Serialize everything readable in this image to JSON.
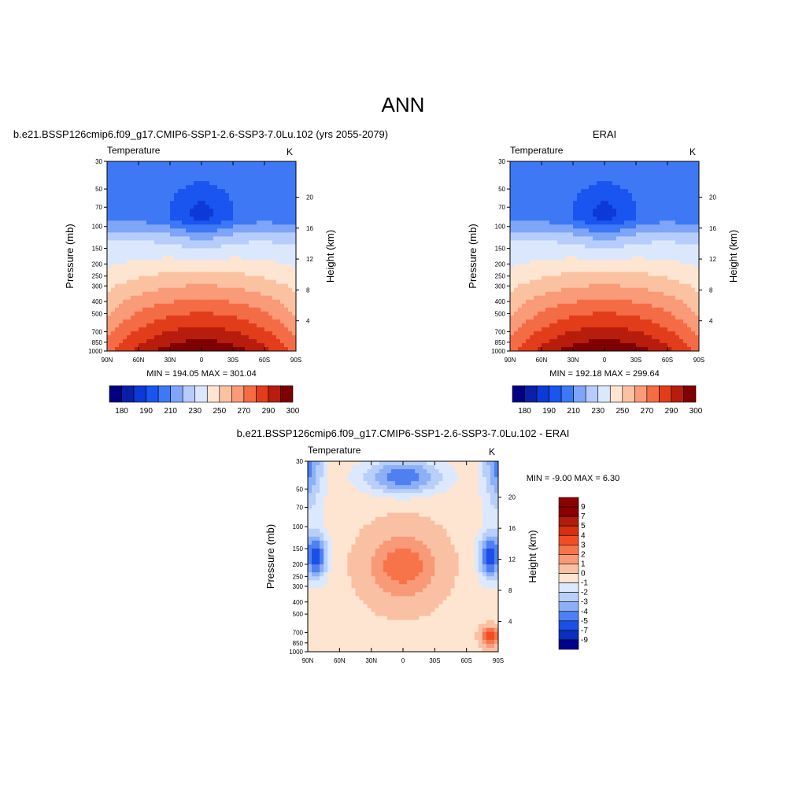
{
  "title": "ANN",
  "chart_data": [
    {
      "type": "heatmap",
      "title": "b.e21.BSSP126cmip6.f09_g17.CMIP6-SSP1-2.6-SSP3-7.0Lu.102 (yrs 2055-2079)",
      "left_string": "Temperature",
      "right_string": "K",
      "xlabel": "",
      "ylabel": "Pressure (mb)",
      "ylabel_right": "Height (km)",
      "x_ticks": [
        "90N",
        "60N",
        "30N",
        "0",
        "30S",
        "60S",
        "90S"
      ],
      "y_ticks": [
        "30",
        "50",
        "70",
        "100",
        "150",
        "200",
        "250",
        "300",
        "400",
        "500",
        "700",
        "850",
        "1000"
      ],
      "y_ticks_right": [
        "4",
        "8",
        "12",
        "16",
        "20"
      ],
      "stats": "MIN = 194.05  MAX = 301.04",
      "colorbar_labels": [
        "180",
        "190",
        "210",
        "230",
        "250",
        "270",
        "290",
        "300"
      ],
      "y_scale": "log"
    },
    {
      "type": "heatmap",
      "title": "ERAI",
      "left_string": "Temperature",
      "right_string": "K",
      "xlabel": "",
      "ylabel": "Pressure (mb)",
      "ylabel_right": "Height (km)",
      "x_ticks": [
        "90N",
        "60N",
        "30N",
        "0",
        "30S",
        "60S",
        "90S"
      ],
      "y_ticks": [
        "30",
        "50",
        "70",
        "100",
        "150",
        "200",
        "250",
        "300",
        "400",
        "500",
        "700",
        "850",
        "1000"
      ],
      "y_ticks_right": [
        "4",
        "8",
        "12",
        "16",
        "20"
      ],
      "stats": "MIN = 192.18  MAX = 299.64",
      "colorbar_labels": [
        "180",
        "190",
        "210",
        "230",
        "250",
        "270",
        "290",
        "300"
      ],
      "y_scale": "log"
    },
    {
      "type": "heatmap",
      "title": "b.e21.BSSP126cmip6.f09_g17.CMIP6-SSP1-2.6-SSP3-7.0Lu.102 - ERAI",
      "left_string": "Temperature",
      "right_string": "K",
      "xlabel": "",
      "ylabel": "Pressure (mb)",
      "ylabel_right": "Height (km)",
      "x_ticks": [
        "90N",
        "60N",
        "30N",
        "0",
        "30S",
        "60S",
        "90S"
      ],
      "y_ticks": [
        "30",
        "50",
        "70",
        "100",
        "150",
        "200",
        "250",
        "300",
        "400",
        "500",
        "700",
        "850",
        "1000"
      ],
      "y_ticks_right": [
        "4",
        "8",
        "12",
        "16",
        "20"
      ],
      "stats": "MIN =  -9.00  MAX =   6.30",
      "colorbar_labels": [
        "9",
        "7",
        "5",
        "4",
        "3",
        "2",
        "1",
        "0",
        "-1",
        "-2",
        "-3",
        "-4",
        "-5",
        "-7",
        "-9"
      ],
      "y_scale": "log"
    }
  ],
  "colors": {
    "abs_scale": [
      "#000080",
      "#0a1fa8",
      "#0d3ad6",
      "#1a55f0",
      "#3e78f5",
      "#7ea5f8",
      "#b6cdfb",
      "#dae7fd",
      "#fde5d1",
      "#fbc2a2",
      "#f99a78",
      "#f46c46",
      "#e23d1a",
      "#b81c0c",
      "#7e0000"
    ],
    "diff_scale": [
      "#8b0000",
      "#b11c0c",
      "#d6300f",
      "#f04e22",
      "#f7744b",
      "#f89a78",
      "#fac0a3",
      "#fde5d1",
      "#dce8fd",
      "#b8cffa",
      "#8cb0f7",
      "#4f80f2",
      "#1c4fe6",
      "#0a2fbf",
      "#00008b"
    ]
  }
}
